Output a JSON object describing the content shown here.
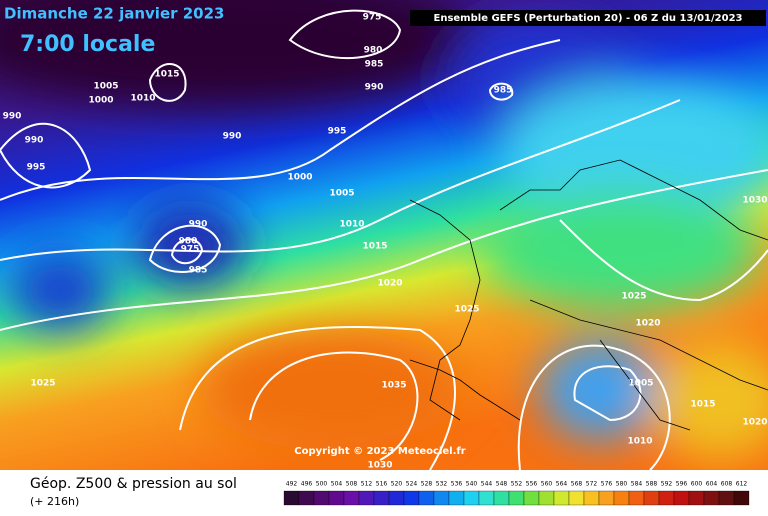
{
  "header": {
    "title": "Dimanche 22 janvier 2023",
    "time": "7:00 locale",
    "model": "Ensemble GEFS  (Perturbation 20)  -  06 Z du 13/01/2023"
  },
  "isobar_labels": [
    975,
    980,
    985,
    990,
    1015,
    1005,
    1010,
    1000,
    990,
    990,
    995,
    990,
    995,
    985,
    1000,
    1005,
    1010,
    990,
    980,
    975,
    985,
    1015,
    1020,
    1025,
    1030,
    1025,
    1020,
    1005,
    1015,
    1020,
    1010,
    1035,
    1025,
    1030
  ],
  "copyright": "Copyright © 2023 Meteociel.fr",
  "legend": {
    "title": "Géop. Z500 & pression au sol",
    "lead": "(+ 216h)",
    "scale": [
      492,
      496,
      500,
      504,
      508,
      512,
      516,
      520,
      524,
      528,
      532,
      536,
      540,
      544,
      548,
      552,
      556,
      560,
      564,
      568,
      572,
      576,
      580,
      584,
      588,
      592,
      596,
      600,
      604,
      608,
      612
    ]
  }
}
